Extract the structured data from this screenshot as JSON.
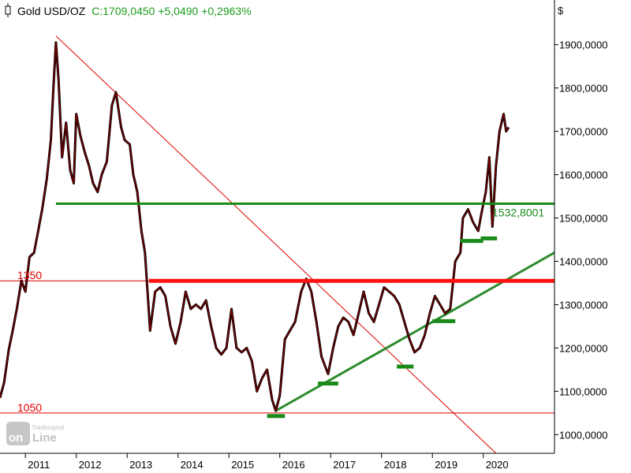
{
  "header": {
    "instrument": "Gold USD/OZ",
    "quote": "C:1709,0450 +5,0490 +0,2963%",
    "quote_color": "#1a9c1a"
  },
  "watermark": {
    "brand_small": "Tradesignal",
    "brand_top": "on",
    "brand_bottom": "Line"
  },
  "chart_data": {
    "type": "line",
    "currency_label": "$",
    "x_range": [
      2010.5,
      2021.4
    ],
    "y_range": [
      957,
      2003
    ],
    "x_ticks": [
      {
        "label": "2011",
        "value": 2011.0
      },
      {
        "label": "2012",
        "value": 2012.0
      },
      {
        "label": "2013",
        "value": 2013.0
      },
      {
        "label": "2014",
        "value": 2014.0
      },
      {
        "label": "2015",
        "value": 2015.0
      },
      {
        "label": "2016",
        "value": 2016.0
      },
      {
        "label": "2017",
        "value": 2017.0
      },
      {
        "label": "2018",
        "value": 2018.0
      },
      {
        "label": "2019",
        "value": 2019.0
      },
      {
        "label": "2020",
        "value": 2020.0
      }
    ],
    "y_ticks": [
      {
        "label": "1000,0000",
        "value": 1000
      },
      {
        "label": "1100,0000",
        "value": 1100
      },
      {
        "label": "1200,0000",
        "value": 1200
      },
      {
        "label": "1300,0000",
        "value": 1300
      },
      {
        "label": "1400,0000",
        "value": 1400
      },
      {
        "label": "1500,0000",
        "value": 1500
      },
      {
        "label": "1600,0000",
        "value": 1600
      },
      {
        "label": "1700,0000",
        "value": 1700
      },
      {
        "label": "1800,0000",
        "value": 1800
      },
      {
        "label": "1900,0000",
        "value": 1900
      }
    ],
    "series": [
      {
        "color": "#8b0000",
        "points": [
          [
            2010.5,
            1085
          ],
          [
            2010.58,
            1120
          ],
          [
            2010.67,
            1195
          ],
          [
            2010.75,
            1240
          ],
          [
            2010.83,
            1290
          ],
          [
            2010.92,
            1355
          ],
          [
            2011.0,
            1330
          ],
          [
            2011.08,
            1410
          ],
          [
            2011.17,
            1420
          ],
          [
            2011.25,
            1470
          ],
          [
            2011.33,
            1520
          ],
          [
            2011.42,
            1590
          ],
          [
            2011.5,
            1680
          ],
          [
            2011.55,
            1800
          ],
          [
            2011.6,
            1905
          ],
          [
            2011.65,
            1820
          ],
          [
            2011.72,
            1640
          ],
          [
            2011.8,
            1720
          ],
          [
            2011.88,
            1610
          ],
          [
            2011.95,
            1580
          ],
          [
            2012.0,
            1740
          ],
          [
            2012.08,
            1690
          ],
          [
            2012.17,
            1650
          ],
          [
            2012.25,
            1620
          ],
          [
            2012.33,
            1580
          ],
          [
            2012.42,
            1560
          ],
          [
            2012.5,
            1600
          ],
          [
            2012.6,
            1630
          ],
          [
            2012.7,
            1760
          ],
          [
            2012.78,
            1790
          ],
          [
            2012.88,
            1710
          ],
          [
            2012.95,
            1680
          ],
          [
            2013.05,
            1670
          ],
          [
            2013.12,
            1600
          ],
          [
            2013.2,
            1560
          ],
          [
            2013.28,
            1470
          ],
          [
            2013.35,
            1420
          ],
          [
            2013.45,
            1240
          ],
          [
            2013.55,
            1330
          ],
          [
            2013.65,
            1340
          ],
          [
            2013.75,
            1320
          ],
          [
            2013.85,
            1250
          ],
          [
            2013.95,
            1210
          ],
          [
            2014.05,
            1260
          ],
          [
            2014.15,
            1330
          ],
          [
            2014.25,
            1290
          ],
          [
            2014.35,
            1300
          ],
          [
            2014.45,
            1290
          ],
          [
            2014.55,
            1310
          ],
          [
            2014.65,
            1250
          ],
          [
            2014.75,
            1200
          ],
          [
            2014.85,
            1185
          ],
          [
            2014.95,
            1200
          ],
          [
            2015.05,
            1290
          ],
          [
            2015.15,
            1200
          ],
          [
            2015.25,
            1190
          ],
          [
            2015.35,
            1200
          ],
          [
            2015.45,
            1170
          ],
          [
            2015.55,
            1100
          ],
          [
            2015.65,
            1130
          ],
          [
            2015.75,
            1150
          ],
          [
            2015.85,
            1080
          ],
          [
            2015.92,
            1055
          ],
          [
            2016.0,
            1090
          ],
          [
            2016.1,
            1220
          ],
          [
            2016.2,
            1240
          ],
          [
            2016.3,
            1260
          ],
          [
            2016.42,
            1330
          ],
          [
            2016.52,
            1360
          ],
          [
            2016.62,
            1330
          ],
          [
            2016.72,
            1260
          ],
          [
            2016.82,
            1180
          ],
          [
            2016.95,
            1140
          ],
          [
            2017.05,
            1200
          ],
          [
            2017.15,
            1250
          ],
          [
            2017.25,
            1270
          ],
          [
            2017.35,
            1260
          ],
          [
            2017.45,
            1230
          ],
          [
            2017.55,
            1280
          ],
          [
            2017.65,
            1330
          ],
          [
            2017.75,
            1280
          ],
          [
            2017.85,
            1260
          ],
          [
            2017.95,
            1300
          ],
          [
            2018.05,
            1340
          ],
          [
            2018.15,
            1330
          ],
          [
            2018.25,
            1320
          ],
          [
            2018.35,
            1300
          ],
          [
            2018.45,
            1260
          ],
          [
            2018.55,
            1220
          ],
          [
            2018.65,
            1190
          ],
          [
            2018.75,
            1200
          ],
          [
            2018.85,
            1230
          ],
          [
            2018.95,
            1280
          ],
          [
            2019.05,
            1320
          ],
          [
            2019.15,
            1300
          ],
          [
            2019.25,
            1280
          ],
          [
            2019.35,
            1290
          ],
          [
            2019.45,
            1400
          ],
          [
            2019.55,
            1420
          ],
          [
            2019.6,
            1500
          ],
          [
            2019.7,
            1520
          ],
          [
            2019.8,
            1490
          ],
          [
            2019.9,
            1470
          ],
          [
            2019.98,
            1520
          ],
          [
            2020.05,
            1560
          ],
          [
            2020.12,
            1640
          ],
          [
            2020.18,
            1480
          ],
          [
            2020.25,
            1620
          ],
          [
            2020.32,
            1700
          ],
          [
            2020.4,
            1740
          ],
          [
            2020.45,
            1700
          ],
          [
            2020.5,
            1709
          ]
        ]
      }
    ],
    "horizontal_lines": [
      {
        "label": "1050",
        "value": 1050,
        "color": "#e00000",
        "width": 1,
        "x_start": 2010.5,
        "x_end": 2021.4
      },
      {
        "label": "1350",
        "value": 1355,
        "color": "#e00000",
        "width": 1,
        "x_start": 2010.5,
        "x_end": 2021.4
      },
      {
        "label": "",
        "value": 1355,
        "color": "#ff1111",
        "width": 5,
        "x_start": 2013.43,
        "x_end": 2021.4
      },
      {
        "label": "1532,8001",
        "value": 1533,
        "color": "#1a8a1a",
        "width": 3,
        "x_start": 2011.6,
        "x_end": 2021.4
      }
    ],
    "trend_lines": [
      {
        "color": "#e00000",
        "width": 1,
        "from": [
          2011.6,
          1920
        ],
        "to": [
          2020.25,
          957
        ]
      },
      {
        "color": "#2e8b2e",
        "width": 3,
        "from": [
          2015.92,
          1055
        ],
        "to": [
          2021.4,
          1420
        ]
      }
    ],
    "support_markers": [
      {
        "x_from": 2015.75,
        "x_to": 2016.1,
        "value": 1043
      },
      {
        "x_from": 2016.75,
        "x_to": 2017.15,
        "value": 1118
      },
      {
        "x_from": 2018.3,
        "x_to": 2018.63,
        "value": 1157
      },
      {
        "x_from": 2019.0,
        "x_to": 2019.45,
        "value": 1262
      },
      {
        "x_from": 2019.55,
        "x_to": 2020.0,
        "value": 1447
      },
      {
        "x_from": 2019.95,
        "x_to": 2020.27,
        "value": 1453
      }
    ]
  }
}
